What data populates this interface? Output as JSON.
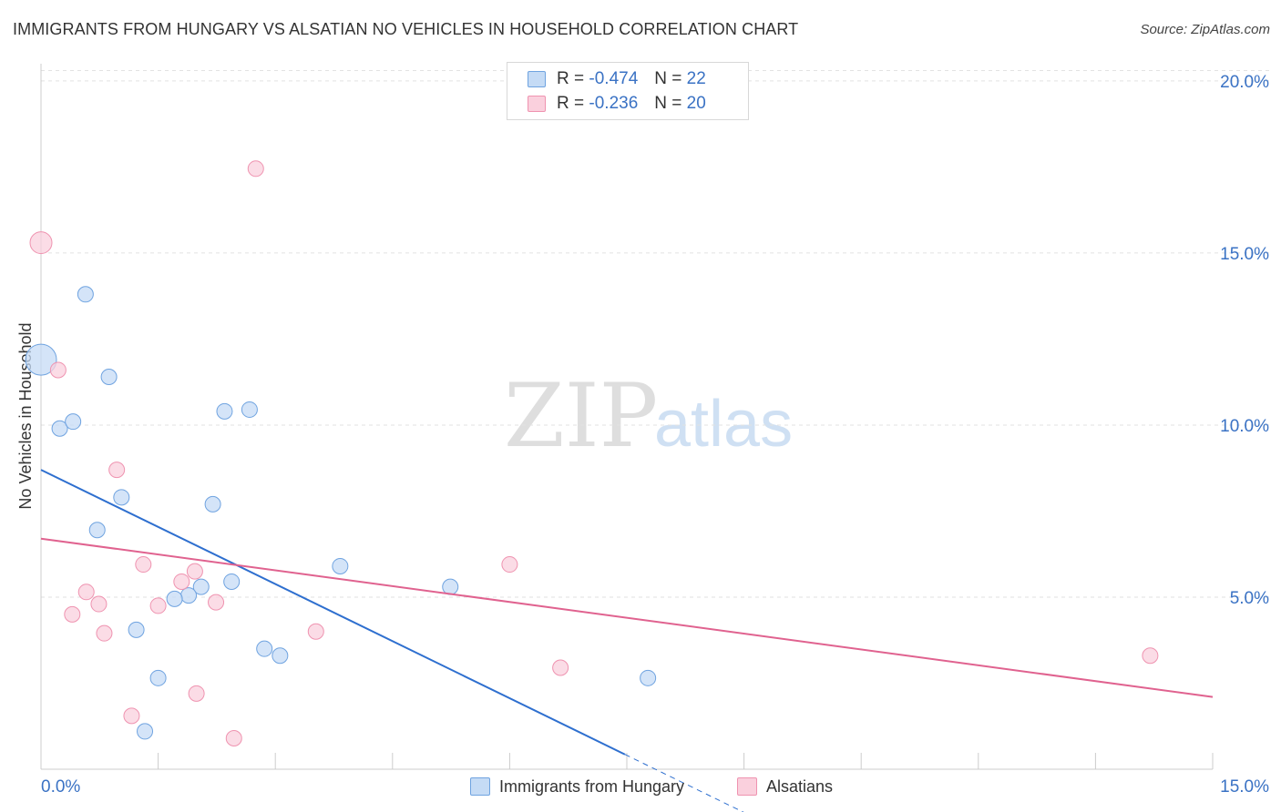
{
  "title": "IMMIGRANTS FROM HUNGARY VS ALSATIAN NO VEHICLES IN HOUSEHOLD CORRELATION CHART",
  "source": "Source: ZipAtlas.com",
  "watermark": {
    "zip": "ZIP",
    "atlas": "atlas"
  },
  "legend": [
    {
      "r_label": "R =",
      "r_value": "-0.474",
      "n_label": "N =",
      "n_value": "22",
      "color": "#a8c8f0"
    },
    {
      "r_label": "R =",
      "r_value": "-0.236",
      "n_label": "N =",
      "n_value": "20",
      "color": "#f5b8cb"
    }
  ],
  "chart_data": {
    "type": "scatter",
    "title": "IMMIGRANTS FROM HUNGARY VS ALSATIAN NO VEHICLES IN HOUSEHOLD CORRELATION CHART",
    "xlabel": "",
    "ylabel": "No Vehicles in Household",
    "xlim": [
      0,
      15
    ],
    "ylim": [
      0,
      20.5
    ],
    "x_tick_labels": [
      "0.0%",
      "15.0%"
    ],
    "y_ticks": [
      5,
      10,
      15,
      20
    ],
    "y_tick_labels": [
      "5.0%",
      "10.0%",
      "15.0%",
      "20.0%"
    ],
    "grid": true,
    "series": [
      {
        "name": "Immigrants from Hungary",
        "color": "#6fa3e0",
        "fill": "#c5dbf5",
        "line_color": "#2e6fcf",
        "points": [
          {
            "x": 0.0,
            "y": 11.9,
            "size": "large"
          },
          {
            "x": 0.57,
            "y": 13.8
          },
          {
            "x": 0.87,
            "y": 11.4
          },
          {
            "x": 0.24,
            "y": 9.9
          },
          {
            "x": 0.41,
            "y": 10.1
          },
          {
            "x": 2.35,
            "y": 10.4
          },
          {
            "x": 2.67,
            "y": 10.45
          },
          {
            "x": 1.03,
            "y": 7.9
          },
          {
            "x": 2.2,
            "y": 7.7
          },
          {
            "x": 0.72,
            "y": 6.95
          },
          {
            "x": 3.83,
            "y": 5.9
          },
          {
            "x": 2.44,
            "y": 5.45
          },
          {
            "x": 2.05,
            "y": 5.3
          },
          {
            "x": 1.89,
            "y": 5.05
          },
          {
            "x": 1.71,
            "y": 4.95
          },
          {
            "x": 5.24,
            "y": 5.3
          },
          {
            "x": 1.22,
            "y": 4.05
          },
          {
            "x": 2.86,
            "y": 3.5
          },
          {
            "x": 3.06,
            "y": 3.3
          },
          {
            "x": 1.5,
            "y": 2.65
          },
          {
            "x": 7.77,
            "y": 2.65
          },
          {
            "x": 1.33,
            "y": 1.1
          }
        ],
        "trend": {
          "x": [
            0.0,
            8.0
          ],
          "y": [
            8.7,
            -0.15
          ],
          "solid_until_x": 8.0,
          "dashed_from_x": 8.0,
          "dashed_until_x": 10.2
        }
      },
      {
        "name": "Alsatians",
        "color": "#ef93b0",
        "fill": "#fad0dd",
        "line_color": "#e0628f",
        "points": [
          {
            "x": 0.0,
            "y": 15.3,
            "size": "medium"
          },
          {
            "x": 2.75,
            "y": 17.45
          },
          {
            "x": 0.22,
            "y": 11.6
          },
          {
            "x": 0.97,
            "y": 8.7
          },
          {
            "x": 1.31,
            "y": 5.95
          },
          {
            "x": 6.0,
            "y": 5.95
          },
          {
            "x": 1.8,
            "y": 5.45
          },
          {
            "x": 1.97,
            "y": 5.75
          },
          {
            "x": 0.58,
            "y": 5.15
          },
          {
            "x": 0.74,
            "y": 4.8
          },
          {
            "x": 1.5,
            "y": 4.75
          },
          {
            "x": 2.24,
            "y": 4.85
          },
          {
            "x": 0.4,
            "y": 4.5
          },
          {
            "x": 0.81,
            "y": 3.95
          },
          {
            "x": 3.52,
            "y": 4.0
          },
          {
            "x": 6.65,
            "y": 2.95
          },
          {
            "x": 14.2,
            "y": 3.3
          },
          {
            "x": 1.99,
            "y": 2.2
          },
          {
            "x": 1.16,
            "y": 1.55
          },
          {
            "x": 2.47,
            "y": 0.9
          }
        ],
        "trend": {
          "x": [
            0.0,
            15.0
          ],
          "y": [
            6.7,
            2.1
          ]
        }
      }
    ]
  }
}
